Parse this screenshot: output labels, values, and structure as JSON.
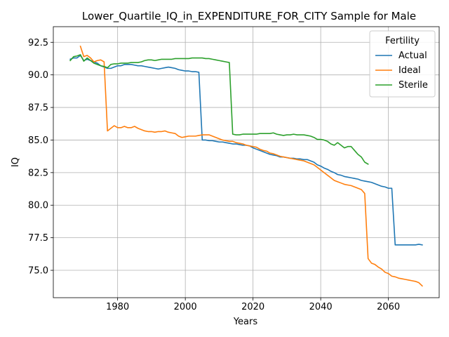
{
  "chart_data": {
    "type": "line",
    "title": "Lower_Quartile_IQ_in_EXPENDITURE_FOR_CITY Sample for Male",
    "xlabel": "Years",
    "ylabel": "IQ",
    "xlim": [
      1961,
      2075
    ],
    "ylim": [
      72.9,
      93.7
    ],
    "xticks": [
      1980,
      2000,
      2020,
      2040,
      2060
    ],
    "yticks": [
      75.0,
      77.5,
      80.0,
      82.5,
      85.0,
      87.5,
      90.0,
      92.5
    ],
    "xtick_labels": [
      "1980",
      "2000",
      "2020",
      "2040",
      "2060"
    ],
    "ytick_labels": [
      "75.0",
      "77.5",
      "80.0",
      "82.5",
      "85.0",
      "87.5",
      "90.0",
      "92.5"
    ],
    "grid": true,
    "legend": {
      "title": "Fertility",
      "placement": "top-right",
      "entries": [
        "Actual",
        "Ideal",
        "Sterile"
      ]
    },
    "series": [
      {
        "name": "Actual",
        "color": "#1f77b4",
        "x": [
          1966,
          1967,
          1968,
          1969,
          1970,
          1971,
          1972,
          1973,
          1974,
          1975,
          1976,
          1977,
          1978,
          1979,
          1980,
          1981,
          1982,
          1983,
          1984,
          1985,
          1986,
          1987,
          1988,
          1989,
          1990,
          1991,
          1992,
          1993,
          1994,
          1995,
          1996,
          1997,
          1998,
          1999,
          2000,
          2001,
          2002,
          2003,
          2004,
          2005,
          2006,
          2007,
          2008,
          2009,
          2010,
          2011,
          2012,
          2013,
          2014,
          2015,
          2016,
          2017,
          2018,
          2019,
          2020,
          2021,
          2022,
          2023,
          2024,
          2025,
          2026,
          2027,
          2028,
          2029,
          2030,
          2031,
          2032,
          2033,
          2034,
          2035,
          2036,
          2037,
          2038,
          2039,
          2040,
          2041,
          2042,
          2043,
          2044,
          2045,
          2046,
          2047,
          2048,
          2049,
          2050,
          2051,
          2052,
          2053,
          2054,
          2055,
          2056,
          2057,
          2058,
          2059,
          2060,
          2061,
          2062,
          2063,
          2064,
          2065,
          2066,
          2067,
          2068,
          2069,
          2070
        ],
        "y": [
          91.2,
          91.3,
          91.3,
          91.5,
          91.1,
          91.2,
          91.1,
          91.0,
          90.9,
          90.7,
          90.6,
          90.5,
          90.5,
          90.6,
          90.7,
          90.7,
          90.8,
          90.8,
          90.8,
          90.75,
          90.7,
          90.7,
          90.65,
          90.6,
          90.55,
          90.5,
          90.45,
          90.5,
          90.55,
          90.6,
          90.55,
          90.5,
          90.4,
          90.35,
          90.3,
          90.3,
          90.25,
          90.25,
          90.2,
          85.0,
          85.0,
          84.95,
          84.95,
          84.9,
          84.85,
          84.85,
          84.8,
          84.75,
          84.7,
          84.7,
          84.65,
          84.6,
          84.6,
          84.55,
          84.4,
          84.3,
          84.2,
          84.1,
          84.0,
          83.9,
          83.85,
          83.8,
          83.7,
          83.7,
          83.65,
          83.6,
          83.6,
          83.55,
          83.55,
          83.5,
          83.5,
          83.4,
          83.3,
          83.1,
          83.0,
          82.85,
          82.75,
          82.6,
          82.5,
          82.35,
          82.3,
          82.2,
          82.15,
          82.1,
          82.05,
          82.0,
          81.9,
          81.85,
          81.8,
          81.75,
          81.65,
          81.55,
          81.45,
          81.4,
          81.3,
          81.3,
          76.95,
          76.95,
          76.95,
          76.95,
          76.95,
          76.95,
          76.95,
          77.0,
          76.95
        ]
      },
      {
        "name": "Ideal",
        "color": "#ff7f0e",
        "x": [
          1969,
          1970,
          1971,
          1972,
          1973,
          1974,
          1975,
          1976,
          1977,
          1978,
          1979,
          1980,
          1981,
          1982,
          1983,
          1984,
          1985,
          1986,
          1987,
          1988,
          1989,
          1990,
          1991,
          1992,
          1993,
          1994,
          1995,
          1996,
          1997,
          1998,
          1999,
          2000,
          2001,
          2002,
          2003,
          2004,
          2005,
          2006,
          2007,
          2008,
          2009,
          2010,
          2011,
          2012,
          2013,
          2014,
          2015,
          2016,
          2017,
          2018,
          2019,
          2020,
          2021,
          2022,
          2023,
          2024,
          2025,
          2026,
          2027,
          2028,
          2029,
          2030,
          2031,
          2032,
          2033,
          2034,
          2035,
          2036,
          2037,
          2038,
          2039,
          2040,
          2041,
          2042,
          2043,
          2044,
          2045,
          2046,
          2047,
          2048,
          2049,
          2050,
          2051,
          2052,
          2053,
          2054,
          2055,
          2056,
          2057,
          2058,
          2059,
          2060,
          2061,
          2062,
          2063,
          2064,
          2065,
          2066,
          2067,
          2068,
          2069,
          2070
        ],
        "y": [
          92.2,
          91.4,
          91.5,
          91.3,
          91.0,
          91.1,
          91.15,
          91.0,
          85.7,
          85.9,
          86.1,
          85.95,
          85.95,
          86.05,
          85.95,
          85.95,
          86.05,
          85.9,
          85.8,
          85.7,
          85.65,
          85.65,
          85.6,
          85.65,
          85.65,
          85.7,
          85.6,
          85.55,
          85.5,
          85.3,
          85.2,
          85.25,
          85.3,
          85.3,
          85.3,
          85.35,
          85.4,
          85.4,
          85.4,
          85.3,
          85.2,
          85.1,
          85.0,
          84.95,
          84.9,
          84.9,
          84.8,
          84.75,
          84.7,
          84.6,
          84.55,
          84.5,
          84.45,
          84.3,
          84.2,
          84.15,
          84.0,
          83.95,
          83.85,
          83.75,
          83.7,
          83.65,
          83.6,
          83.55,
          83.5,
          83.45,
          83.4,
          83.3,
          83.2,
          83.1,
          82.9,
          82.7,
          82.5,
          82.3,
          82.1,
          81.9,
          81.8,
          81.7,
          81.6,
          81.55,
          81.5,
          81.4,
          81.3,
          81.2,
          80.9,
          75.9,
          75.55,
          75.45,
          75.25,
          75.1,
          74.85,
          74.75,
          74.55,
          74.5,
          74.4,
          74.35,
          74.3,
          74.25,
          74.2,
          74.15,
          74.05,
          73.8
        ]
      },
      {
        "name": "Sterile",
        "color": "#2ca02c",
        "x": [
          1966,
          1967,
          1968,
          1969,
          1970,
          1971,
          1972,
          1973,
          1974,
          1975,
          1976,
          1977,
          1978,
          1979,
          1980,
          1981,
          1982,
          1983,
          1984,
          1985,
          1986,
          1987,
          1988,
          1989,
          1990,
          1991,
          1992,
          1993,
          1994,
          1995,
          1996,
          1997,
          1998,
          1999,
          2000,
          2001,
          2002,
          2003,
          2004,
          2005,
          2006,
          2007,
          2008,
          2009,
          2010,
          2011,
          2012,
          2013,
          2014,
          2015,
          2016,
          2017,
          2018,
          2019,
          2020,
          2021,
          2022,
          2023,
          2024,
          2025,
          2026,
          2027,
          2028,
          2029,
          2030,
          2031,
          2032,
          2033,
          2034,
          2035,
          2036,
          2037,
          2038,
          2039,
          2040,
          2041,
          2042,
          2043,
          2044,
          2045,
          2046,
          2047,
          2048,
          2049,
          2050,
          2051,
          2052,
          2053,
          2054
        ],
        "y": [
          91.1,
          91.4,
          91.45,
          91.55,
          91.05,
          91.3,
          91.1,
          90.9,
          90.8,
          90.7,
          90.65,
          90.55,
          90.8,
          90.85,
          90.85,
          90.9,
          90.9,
          90.9,
          90.95,
          90.95,
          90.95,
          91.0,
          91.1,
          91.15,
          91.15,
          91.1,
          91.15,
          91.2,
          91.2,
          91.2,
          91.2,
          91.25,
          91.25,
          91.25,
          91.25,
          91.25,
          91.3,
          91.3,
          91.3,
          91.3,
          91.25,
          91.25,
          91.2,
          91.15,
          91.1,
          91.05,
          91.0,
          90.95,
          85.45,
          85.4,
          85.4,
          85.45,
          85.45,
          85.45,
          85.45,
          85.45,
          85.5,
          85.5,
          85.5,
          85.5,
          85.55,
          85.45,
          85.4,
          85.35,
          85.4,
          85.4,
          85.45,
          85.4,
          85.4,
          85.4,
          85.35,
          85.3,
          85.2,
          85.05,
          85.05,
          85.0,
          84.9,
          84.7,
          84.6,
          84.8,
          84.6,
          84.4,
          84.5,
          84.5,
          84.2,
          83.9,
          83.7,
          83.3,
          83.15
        ]
      }
    ]
  }
}
